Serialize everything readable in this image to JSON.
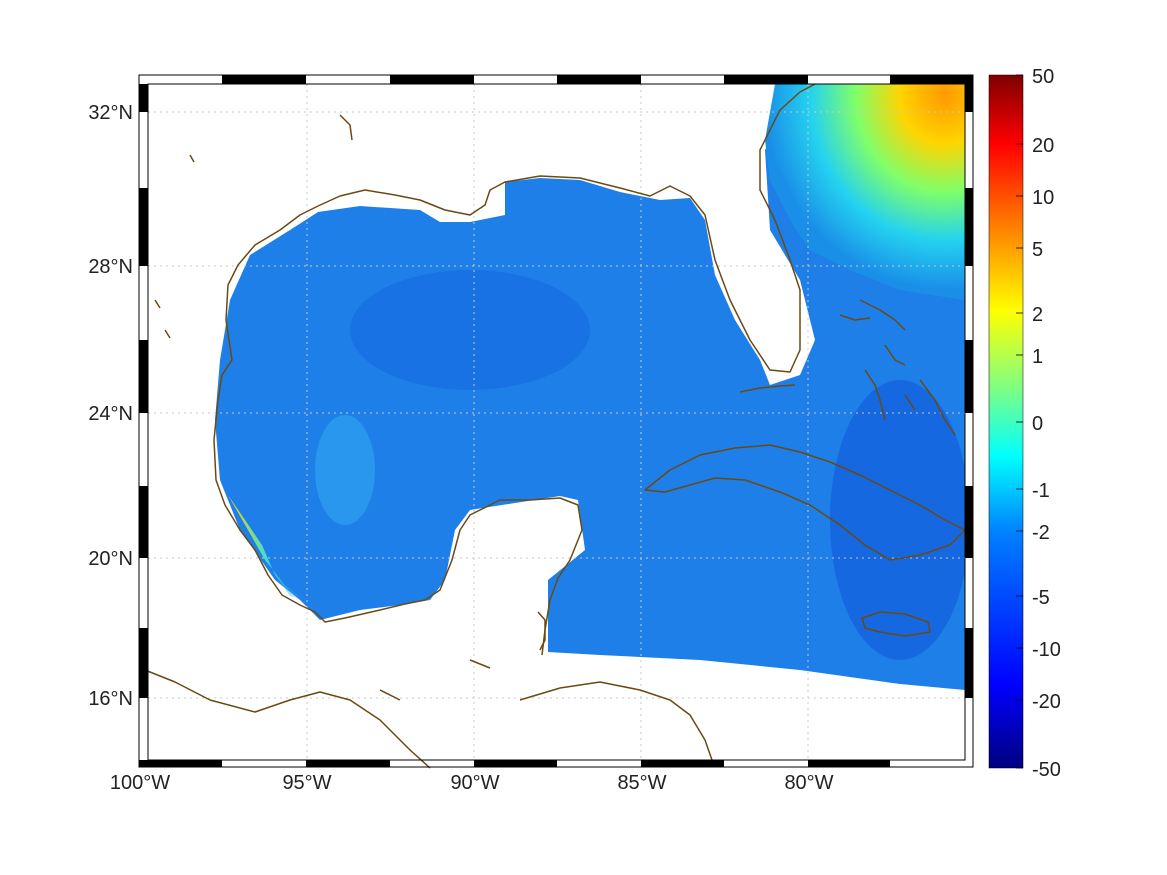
{
  "map": {
    "lon_labels": [
      "100°W",
      "95°W",
      "90°W",
      "85°W",
      "80°W"
    ],
    "lat_labels": [
      "32°N",
      "28°N",
      "24°N",
      "20°N",
      "16°N"
    ],
    "colors": {
      "ocean": "#1f7fe8",
      "ocean_deep": "#0d5ae0",
      "land_outline": "#6b4a12",
      "land": "#ffffff",
      "frame": "#000000",
      "grid": "#c8c8c8"
    }
  },
  "colorbar": {
    "tick_labels": [
      "50",
      "20",
      "10",
      "5",
      "2",
      "1",
      "0",
      "-1",
      "-2",
      "-5",
      "-10",
      "-20",
      "-50"
    ],
    "colormap": "jet"
  }
}
